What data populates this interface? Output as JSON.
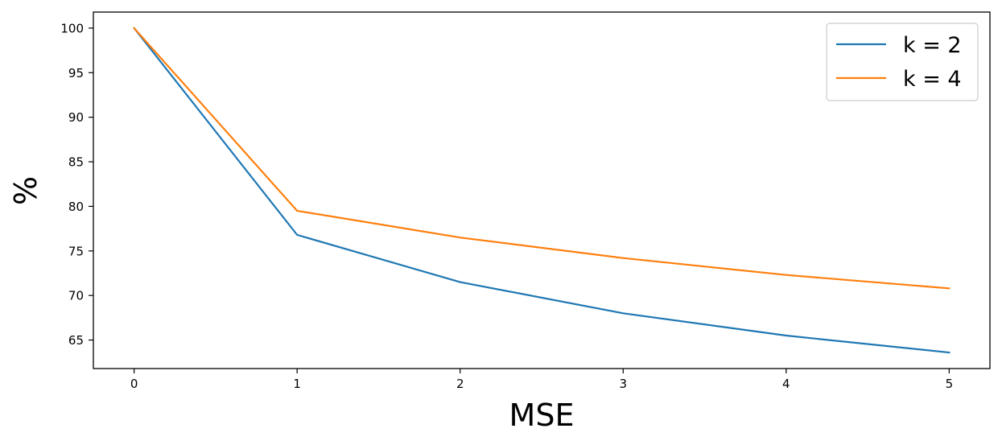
{
  "chart_data": {
    "type": "line",
    "title": "",
    "xlabel": "MSE",
    "ylabel": "%",
    "x": [
      0,
      1,
      2,
      3,
      4,
      5
    ],
    "xlim": [
      -0.25,
      5.25
    ],
    "ylim": [
      61.8,
      101.8
    ],
    "xticks": [
      0,
      1,
      2,
      3,
      4,
      5
    ],
    "yticks": [
      65,
      70,
      75,
      80,
      85,
      90,
      95,
      100
    ],
    "grid": false,
    "legend_position": "top-right",
    "series": [
      {
        "name": "k = 2",
        "color": "#1f77b4",
        "values": [
          100,
          76.8,
          71.5,
          68.0,
          65.5,
          63.6
        ]
      },
      {
        "name": "k = 4",
        "color": "#ff7f0e",
        "values": [
          100,
          79.5,
          76.5,
          74.2,
          72.3,
          70.8
        ]
      }
    ]
  }
}
